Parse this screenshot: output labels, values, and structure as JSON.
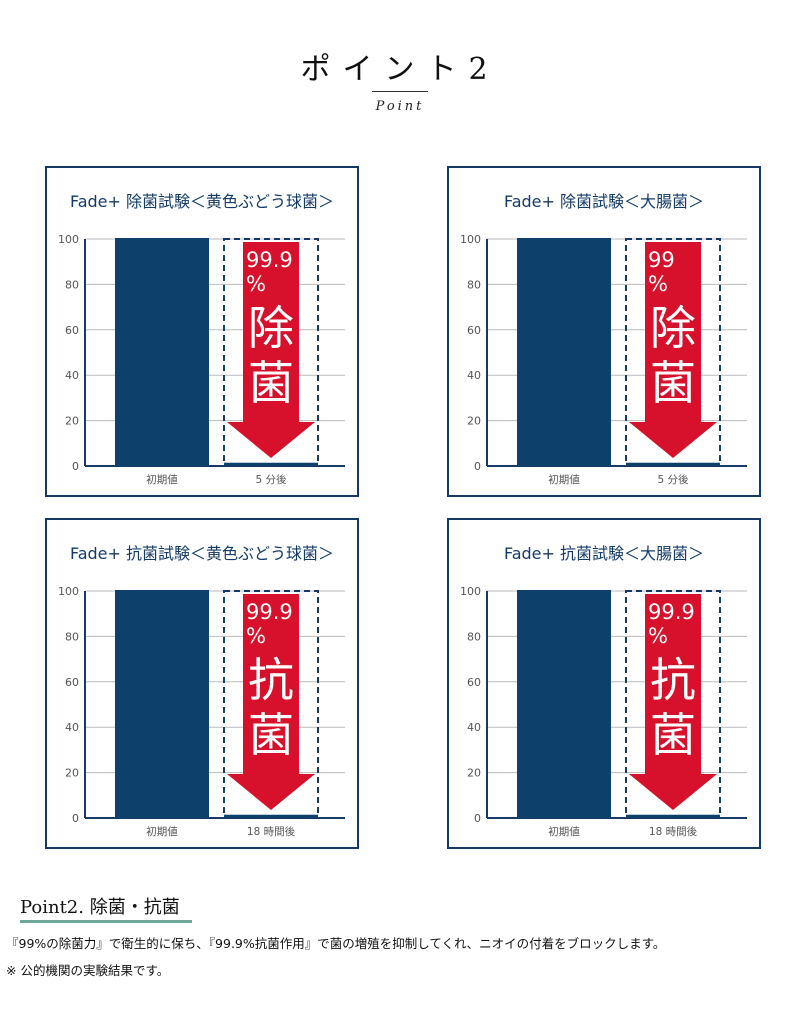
{
  "header": {
    "title": "ポイント2",
    "subtitle": "Point"
  },
  "colors": {
    "bar": "#0d416b",
    "arrow": "#d7102b",
    "frame": "#153a66",
    "accent_line": "#6fa79a"
  },
  "chart_data": [
    {
      "type": "bar",
      "title": "Fade+ 除菌試験＜黄色ぶどう球菌＞",
      "categories": [
        "初期値",
        "5 分後"
      ],
      "values": [
        100,
        1
      ],
      "ylim": [
        0,
        100
      ],
      "yticks": [
        "0",
        "20",
        "40",
        "60",
        "80",
        "100"
      ],
      "grid": true,
      "annotation": {
        "percent": "99.9",
        "percent_sign": "%",
        "label": [
          "除",
          "菌"
        ]
      }
    },
    {
      "type": "bar",
      "title": "Fade+ 除菌試験＜大腸菌＞",
      "categories": [
        "初期値",
        "5 分後"
      ],
      "values": [
        100,
        1
      ],
      "ylim": [
        0,
        100
      ],
      "yticks": [
        "0",
        "20",
        "40",
        "60",
        "80",
        "100"
      ],
      "grid": true,
      "annotation": {
        "percent": "99",
        "percent_sign": "%",
        "label": [
          "除",
          "菌"
        ]
      }
    },
    {
      "type": "bar",
      "title": "Fade+ 抗菌試験＜黄色ぶどう球菌＞",
      "categories": [
        "初期値",
        "18 時間後"
      ],
      "values": [
        100,
        1
      ],
      "ylim": [
        0,
        100
      ],
      "yticks": [
        "0",
        "20",
        "40",
        "60",
        "80",
        "100"
      ],
      "grid": true,
      "annotation": {
        "percent": "99.9",
        "percent_sign": "%",
        "label": [
          "抗",
          "菌"
        ]
      }
    },
    {
      "type": "bar",
      "title": "Fade+ 抗菌試験＜大腸菌＞",
      "categories": [
        "初期値",
        "18 時間後"
      ],
      "values": [
        100,
        1
      ],
      "ylim": [
        0,
        100
      ],
      "yticks": [
        "0",
        "20",
        "40",
        "60",
        "80",
        "100"
      ],
      "grid": true,
      "annotation": {
        "percent": "99.9",
        "percent_sign": "%",
        "label": [
          "抗",
          "菌"
        ]
      }
    }
  ],
  "section": {
    "title": "Point2. 除菌・抗菌",
    "body": "『99%の除菌力』で衛生的に保ち、『99.9%抗菌作用』で菌の増殖を抑制してくれ、ニオイの付着をブロックします。",
    "note": "※ 公的機関の実験結果です。"
  }
}
